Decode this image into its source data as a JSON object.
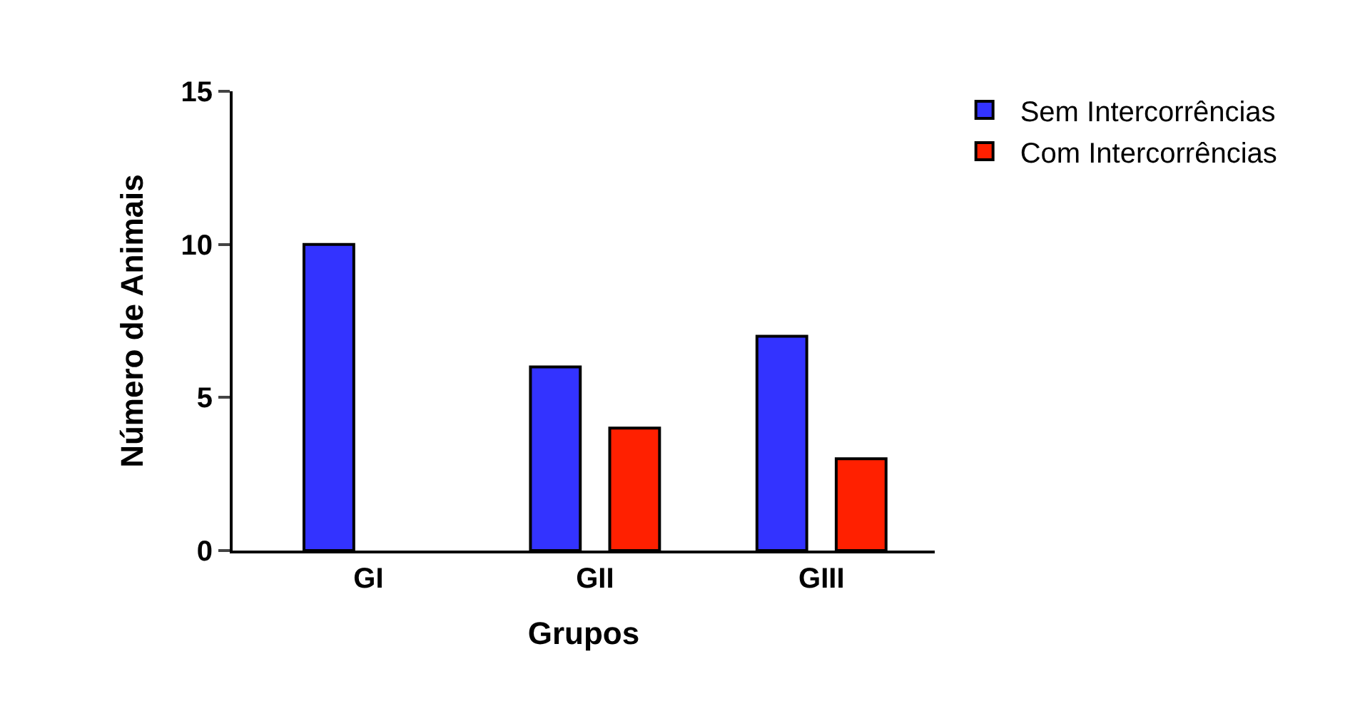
{
  "chart_data": {
    "type": "bar",
    "xlabel": "Grupos",
    "ylabel": "Número de Animais",
    "categories": [
      "GI",
      "GII",
      "GIII"
    ],
    "series": [
      {
        "name": "Sem Intercorrências",
        "color": "#3333ff",
        "values": [
          10,
          6,
          7
        ]
      },
      {
        "name": "Com Intercorrências",
        "color": "#ff2000",
        "values": [
          null,
          4,
          3
        ]
      }
    ],
    "ylim": [
      0,
      15
    ],
    "yticks": [
      0,
      5,
      10,
      15
    ],
    "legend": "top right"
  }
}
